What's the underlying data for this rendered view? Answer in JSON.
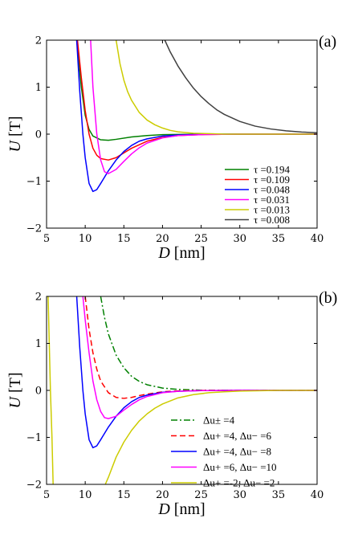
{
  "chart_data": [
    {
      "type": "line",
      "panel_label": "(a)",
      "xlabel": "D [nm]",
      "ylabel": "U [T]",
      "xlim": [
        5,
        40
      ],
      "ylim": [
        -2,
        2
      ],
      "xticks": [
        5,
        10,
        15,
        20,
        25,
        30,
        35,
        40
      ],
      "yticks": [
        -2,
        -1,
        0,
        1,
        2
      ],
      "grid": false,
      "legend_position": "bottom-right",
      "series": [
        {
          "name": "τ =0.194",
          "color": "#008000",
          "dash": "solid",
          "x": [
            8.9,
            9.5,
            10,
            10.5,
            11,
            12,
            13,
            14,
            16,
            18,
            20,
            25,
            30,
            40
          ],
          "y": [
            2.0,
            1.0,
            0.4,
            0.1,
            -0.04,
            -0.12,
            -0.13,
            -0.11,
            -0.06,
            -0.03,
            -0.01,
            0.0,
            0.0,
            0.0
          ]
        },
        {
          "name": "τ =0.109",
          "color": "#ff0000",
          "dash": "solid",
          "x": [
            9.0,
            9.5,
            10,
            10.5,
            11,
            11.5,
            12,
            13,
            14,
            15,
            16,
            18,
            20,
            22,
            25,
            30,
            40
          ],
          "y": [
            2.0,
            1.2,
            0.5,
            0.0,
            -0.3,
            -0.45,
            -0.52,
            -0.55,
            -0.5,
            -0.4,
            -0.3,
            -0.15,
            -0.07,
            -0.03,
            -0.01,
            0.0,
            0.0
          ]
        },
        {
          "name": "τ =0.048",
          "color": "#0000ff",
          "dash": "solid",
          "x": [
            8.9,
            9.3,
            9.7,
            10,
            10.5,
            11,
            11.5,
            12,
            13,
            14,
            15,
            16,
            17,
            18,
            20,
            22,
            25,
            30,
            40
          ],
          "y": [
            2.0,
            0.9,
            0.0,
            -0.5,
            -1.05,
            -1.22,
            -1.18,
            -1.05,
            -0.78,
            -0.55,
            -0.37,
            -0.24,
            -0.15,
            -0.1,
            -0.04,
            -0.02,
            -0.005,
            0.0,
            0.0
          ]
        },
        {
          "name": "τ =0.031",
          "color": "#ff00ff",
          "dash": "solid",
          "x": [
            10.7,
            11,
            11.5,
            12,
            12.5,
            13,
            14,
            15,
            16,
            17,
            18,
            20,
            22,
            25,
            30,
            40
          ],
          "y": [
            2.0,
            1.0,
            0.0,
            -0.55,
            -0.8,
            -0.84,
            -0.75,
            -0.58,
            -0.42,
            -0.29,
            -0.19,
            -0.08,
            -0.03,
            -0.01,
            0.0,
            0.0
          ]
        },
        {
          "name": "τ =0.013",
          "color": "#cccc00",
          "dash": "solid",
          "x": [
            14.0,
            14.5,
            15,
            15.5,
            16,
            17,
            18,
            19,
            20,
            21,
            22,
            24,
            26,
            28,
            30,
            35,
            40
          ],
          "y": [
            2.0,
            1.5,
            1.15,
            0.9,
            0.72,
            0.46,
            0.3,
            0.2,
            0.13,
            0.08,
            0.05,
            0.02,
            0.01,
            0.0,
            0.0,
            0.0,
            0.0
          ]
        },
        {
          "name": "τ =0.008",
          "color": "#404040",
          "dash": "solid",
          "x": [
            20.3,
            21,
            22,
            23,
            24,
            25,
            26,
            27,
            28,
            30,
            32,
            34,
            36,
            38,
            40
          ],
          "y": [
            2.0,
            1.75,
            1.45,
            1.2,
            0.98,
            0.8,
            0.65,
            0.52,
            0.42,
            0.27,
            0.17,
            0.11,
            0.07,
            0.045,
            0.03
          ]
        }
      ]
    },
    {
      "type": "line",
      "panel_label": "(b)",
      "xlabel": "D [nm]",
      "ylabel": "U [T]",
      "xlim": [
        5,
        40
      ],
      "ylim": [
        -2,
        2
      ],
      "xticks": [
        5,
        10,
        15,
        20,
        25,
        30,
        35,
        40
      ],
      "yticks": [
        -2,
        -1,
        0,
        1,
        2
      ],
      "grid": false,
      "legend_position": "bottom-right",
      "series": [
        {
          "name": "Δu± =4",
          "color": "#008000",
          "dash": "dashdot",
          "x": [
            12.0,
            12.5,
            13,
            14,
            15,
            16,
            17,
            18,
            20,
            22,
            25,
            30,
            40
          ],
          "y": [
            2.0,
            1.55,
            1.2,
            0.75,
            0.48,
            0.3,
            0.19,
            0.12,
            0.05,
            0.02,
            0.005,
            0.0,
            0.0
          ]
        },
        {
          "name": "Δu+ =4, Δu− =6",
          "color": "#ff0000",
          "dash": "dashed",
          "x": [
            10.0,
            10.5,
            11,
            11.5,
            12,
            13,
            14,
            15,
            16,
            17,
            18,
            20,
            22,
            25,
            30,
            40
          ],
          "y": [
            2.0,
            1.3,
            0.8,
            0.45,
            0.2,
            -0.05,
            -0.15,
            -0.17,
            -0.15,
            -0.11,
            -0.08,
            -0.03,
            -0.01,
            0.0,
            0.0,
            0.0
          ]
        },
        {
          "name": "Δu+ =4, Δu− =8",
          "color": "#0000ff",
          "dash": "solid",
          "x": [
            8.9,
            9.3,
            9.7,
            10,
            10.5,
            11,
            11.5,
            12,
            13,
            14,
            15,
            16,
            17,
            18,
            20,
            22,
            25,
            30,
            40
          ],
          "y": [
            2.0,
            0.9,
            0.0,
            -0.5,
            -1.05,
            -1.22,
            -1.18,
            -1.05,
            -0.78,
            -0.55,
            -0.37,
            -0.24,
            -0.15,
            -0.1,
            -0.04,
            -0.02,
            -0.005,
            0.0,
            0.0
          ]
        },
        {
          "name": "Δu+ =6, Δu− =10",
          "color": "#ff00ff",
          "dash": "solid",
          "x": [
            9.7,
            10,
            10.5,
            11,
            11.5,
            12,
            12.5,
            13,
            14,
            15,
            16,
            17,
            18,
            20,
            22,
            25,
            30,
            40
          ],
          "y": [
            2.0,
            1.5,
            0.8,
            0.2,
            -0.2,
            -0.45,
            -0.58,
            -0.6,
            -0.55,
            -0.42,
            -0.3,
            -0.2,
            -0.13,
            -0.05,
            -0.02,
            -0.005,
            0.0,
            0.0
          ]
        },
        {
          "name": "Δu+ =-2, Δu− =2",
          "color": "#cccc00",
          "dash": "solid",
          "x": [
            5.2,
            5.35,
            5.5,
            5.7,
            5.85
          ],
          "y": [
            2.0,
            1.0,
            0.0,
            -1.0,
            -2.0
          ]
        },
        {
          "name": "",
          "color": "#cccc00",
          "dash": "solid",
          "x": [
            12.6,
            13,
            14,
            15,
            16,
            17,
            18,
            19,
            20,
            22,
            24,
            26,
            28,
            30,
            35,
            40
          ],
          "y": [
            -2.0,
            -1.85,
            -1.42,
            -1.1,
            -0.85,
            -0.65,
            -0.5,
            -0.38,
            -0.29,
            -0.16,
            -0.09,
            -0.05,
            -0.03,
            -0.015,
            0.0,
            0.0
          ]
        }
      ]
    }
  ]
}
